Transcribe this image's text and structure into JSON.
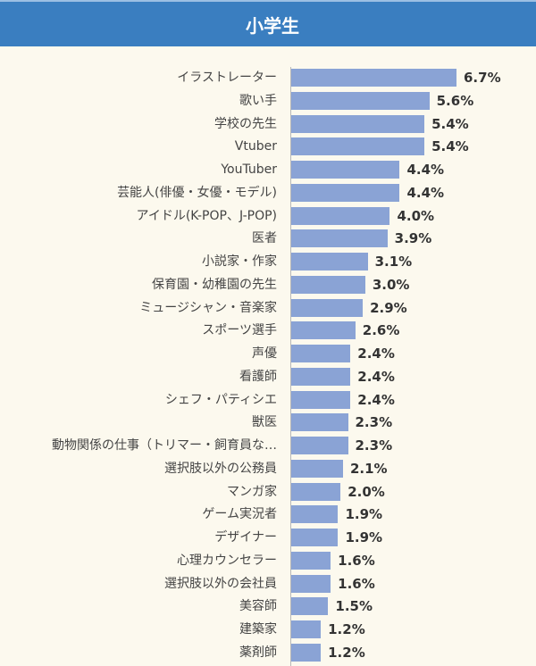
{
  "header": {
    "title": "小学生"
  },
  "colors": {
    "header": "#3a7ec0",
    "bar": "#8aa3d5",
    "background": "#fcf9ee"
  },
  "chart_data": {
    "type": "bar",
    "orientation": "horizontal",
    "title": "小学生",
    "unit": "%",
    "categories": [
      "イラストレーター",
      "歌い手",
      "学校の先生",
      "Vtuber",
      "YouTuber",
      "芸能人(俳優・女優・モデル)",
      "アイドル(K-POP、J-POP)",
      "医者",
      "小説家・作家",
      "保育園・幼稚園の先生",
      "ミュージシャン・音楽家",
      "スポーツ選手",
      "声優",
      "看護師",
      "シェフ・パティシエ",
      "獣医",
      "動物関係の仕事（トリマー・飼育員な…",
      "選択肢以外の公務員",
      "マンガ家",
      "ゲーム実況者",
      "デザイナー",
      "心理カウンセラー",
      "選択肢以外の会社員",
      "美容師",
      "建築家",
      "薬剤師"
    ],
    "values": [
      6.7,
      5.6,
      5.4,
      5.4,
      4.4,
      4.4,
      4.0,
      3.9,
      3.1,
      3.0,
      2.9,
      2.6,
      2.4,
      2.4,
      2.4,
      2.3,
      2.3,
      2.1,
      2.0,
      1.9,
      1.9,
      1.6,
      1.6,
      1.5,
      1.2,
      1.2
    ],
    "value_labels": [
      "6.7%",
      "5.6%",
      "5.4%",
      "5.4%",
      "4.4%",
      "4.4%",
      "4.0%",
      "3.9%",
      "3.1%",
      "3.0%",
      "2.9%",
      "2.6%",
      "2.4%",
      "2.4%",
      "2.4%",
      "2.3%",
      "2.3%",
      "2.1%",
      "2.0%",
      "1.9%",
      "1.9%",
      "1.6%",
      "1.6%",
      "1.5%",
      "1.2%",
      "1.2%"
    ],
    "grid": false
  }
}
